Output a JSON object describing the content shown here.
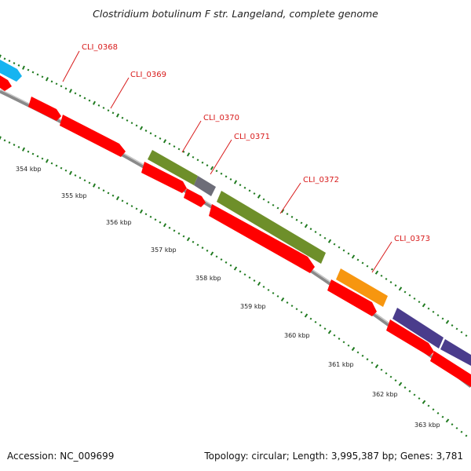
{
  "title": "Clostridium botulinum F str. Langeland, complete genome",
  "footer": {
    "accession": "Accession: NC_009699",
    "topology": "Topology: circular; Length: 3,995,387 bp; Genes: 3,781"
  },
  "colors": {
    "cds_red": "#ff0000",
    "backbone": "#8a8a8a",
    "tick_green": "#1f7a1f",
    "label_red": "#d81b1b",
    "blue": "#16b4f0",
    "olive": "#6e8f2a",
    "grey": "#6d6d78",
    "orange": "#f7960f",
    "purple": "#4a3c8c"
  },
  "gene_labels": [
    "CLI_0368",
    "CLI_0369",
    "CLI_0370",
    "CLI_0371",
    "CLI_0372",
    "CLI_0373"
  ],
  "kbp_labels": [
    "354 kbp",
    "355 kbp",
    "356 kbp",
    "357 kbp",
    "358 kbp",
    "359 kbp",
    "360 kbp",
    "361 kbp",
    "362 kbp",
    "363 kbp"
  ]
}
